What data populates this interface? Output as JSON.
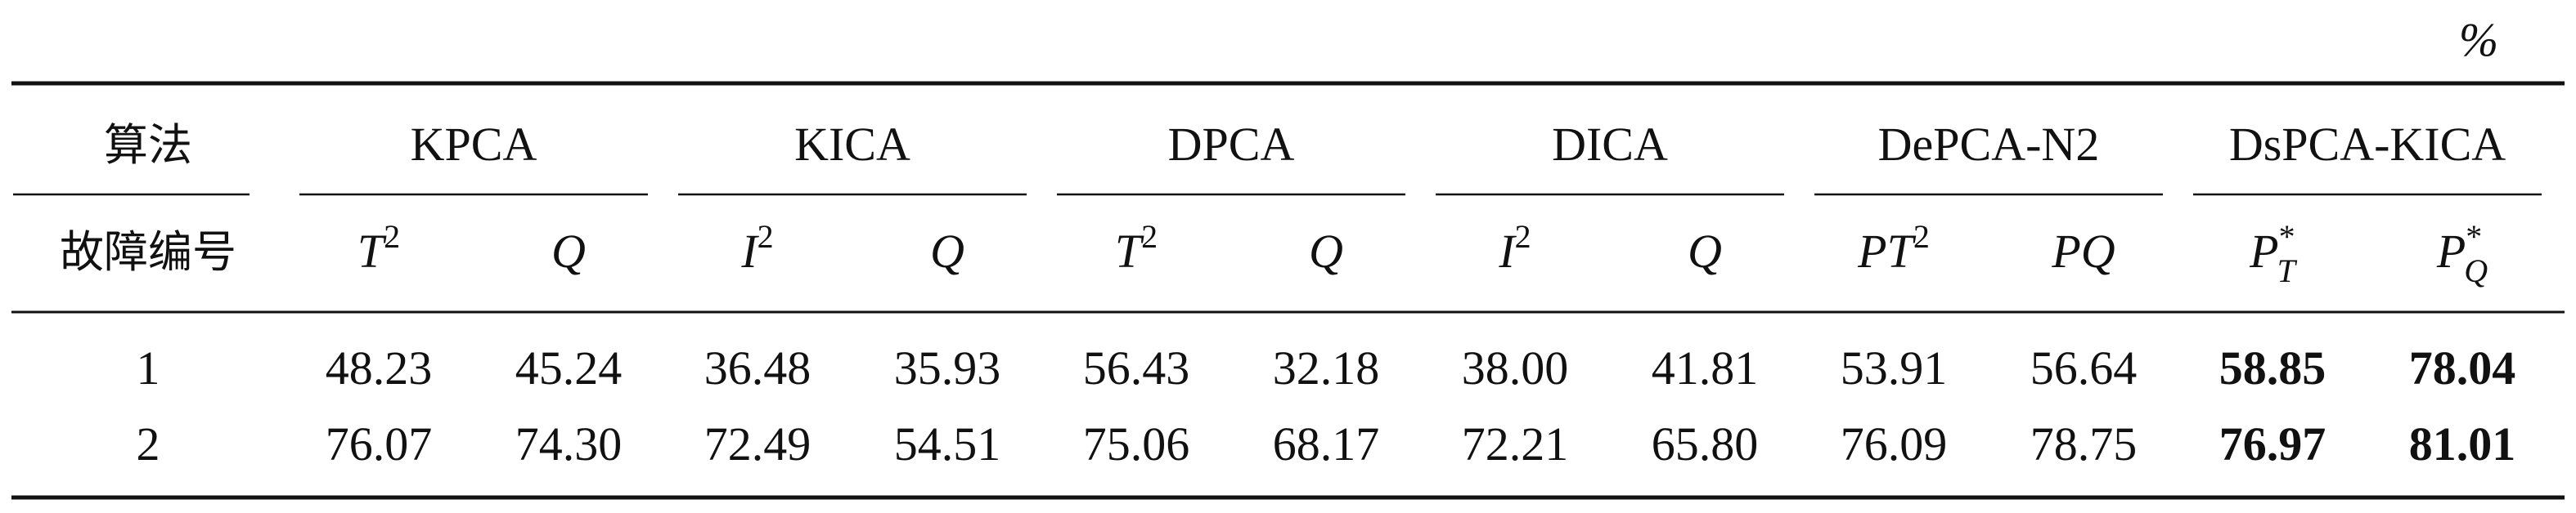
{
  "unit": "%",
  "header": {
    "row_label": "算法",
    "groups": [
      "KPCA",
      "KICA",
      "DPCA",
      "DICA",
      "DePCA-N2",
      "DsPCA-KICA"
    ]
  },
  "subheader": {
    "row_label": "故障编号",
    "columns": [
      {
        "base": "T",
        "sup": "2"
      },
      {
        "base": "Q"
      },
      {
        "base": "I",
        "sup": "2"
      },
      {
        "base": "Q"
      },
      {
        "base": "T",
        "sup": "2"
      },
      {
        "base": "Q"
      },
      {
        "base": "I",
        "sup": "2"
      },
      {
        "base": "Q"
      },
      {
        "base": "PT",
        "sup": "2"
      },
      {
        "base": "PQ"
      },
      {
        "base": "P",
        "sup": "*",
        "sub": "T"
      },
      {
        "base": "P",
        "sup": "*",
        "sub": "Q"
      }
    ]
  },
  "rows": [
    {
      "id": "1",
      "values": [
        "48.23",
        "45.24",
        "36.48",
        "35.93",
        "56.43",
        "32.18",
        "38.00",
        "41.81",
        "53.91",
        "56.64",
        "58.85",
        "78.04"
      ]
    },
    {
      "id": "2",
      "values": [
        "76.07",
        "74.30",
        "72.49",
        "54.51",
        "75.06",
        "68.17",
        "72.21",
        "65.80",
        "76.09",
        "78.75",
        "76.97",
        "81.01"
      ]
    }
  ]
}
